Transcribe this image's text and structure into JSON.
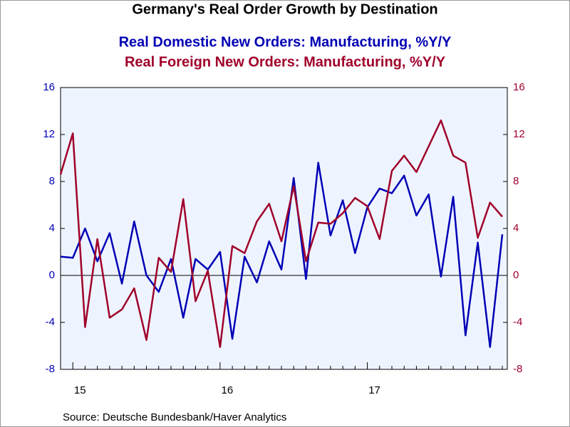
{
  "chart_data": {
    "type": "line",
    "title": "Germany's Real Order Growth by Destination",
    "source": "Source:  Deutsche Bundesbank/Haver Analytics",
    "categories": [
      null,
      "15",
      null,
      null,
      null,
      null,
      null,
      null,
      null,
      null,
      null,
      null,
      null,
      "16",
      null,
      null,
      null,
      null,
      null,
      null,
      null,
      null,
      null,
      null,
      null,
      "17",
      null,
      null,
      null,
      null,
      null,
      null,
      null,
      null,
      null,
      null,
      null
    ],
    "series": [
      {
        "name": "Real Domestic New Orders: Manufacturing, %Y/Y",
        "color": "#0000b4",
        "axis": "y",
        "values": [
          1.6,
          1.5,
          4.0,
          1.2,
          3.6,
          -0.7,
          4.6,
          0.0,
          -1.4,
          1.4,
          -3.6,
          1.4,
          0.5,
          2.0,
          -5.4,
          1.6,
          -0.6,
          2.9,
          0.5,
          8.3,
          -0.3,
          9.6,
          3.4,
          6.4,
          1.9,
          5.8,
          7.4,
          7.0,
          8.5,
          5.1,
          6.9,
          -0.1,
          6.7,
          -5.1,
          2.8,
          -6.1,
          3.5
        ]
      },
      {
        "name": "Real Foreign New Orders: Manufacturing, %Y/Y",
        "color": "#a0002a",
        "axis": "y2",
        "values": [
          8.6,
          12.1,
          -4.4,
          3.1,
          -3.6,
          -2.9,
          -1.1,
          -5.5,
          1.5,
          0.3,
          6.5,
          -2.2,
          0.4,
          -6.1,
          2.5,
          1.9,
          4.6,
          6.1,
          2.9,
          7.6,
          1.2,
          4.5,
          4.4,
          5.3,
          6.6,
          5.9,
          3.1,
          8.9,
          10.2,
          8.8,
          11.0,
          13.2,
          10.2,
          9.6,
          3.2,
          6.2,
          5.0
        ]
      }
    ],
    "ylim": [
      -8,
      16
    ],
    "yticks": [
      -8,
      -4,
      0,
      4,
      8,
      12,
      16
    ],
    "y2lim": [
      -8,
      16
    ],
    "y2ticks": [
      -8,
      -4,
      0,
      4,
      8,
      12,
      16
    ],
    "zero_line": true
  }
}
